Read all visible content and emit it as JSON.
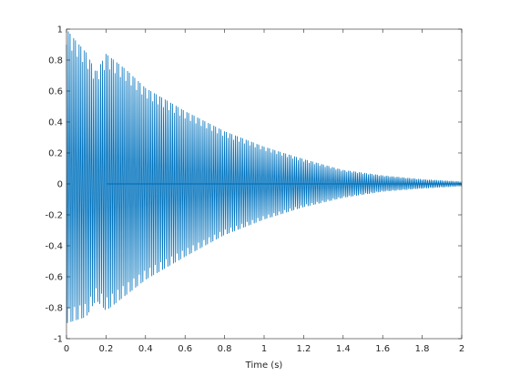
{
  "chart_data": {
    "type": "line",
    "title": "",
    "xlabel": "Time (s)",
    "ylabel": "",
    "xlim": [
      0,
      2
    ],
    "ylim": [
      -1,
      1
    ],
    "grid": false,
    "legend": "none",
    "x_ticks": [
      0,
      0.2,
      0.4,
      0.6,
      0.8,
      1,
      1.2,
      1.4,
      1.6,
      1.8,
      2
    ],
    "x_tick_labels": [
      "0",
      "0.2",
      "0.4",
      "0.6",
      "0.8",
      "1",
      "1.2",
      "1.4",
      "1.6",
      "1.8",
      "2"
    ],
    "y_ticks": [
      -1,
      -0.8,
      -0.6,
      -0.4,
      -0.2,
      0,
      0.2,
      0.4,
      0.6,
      0.8,
      1
    ],
    "y_tick_labels": [
      "-1",
      "-0.8",
      "-0.6",
      "-0.4",
      "-0.2",
      "0",
      "0.2",
      "0.4",
      "0.6",
      "0.8",
      "1"
    ],
    "series": [
      {
        "color": "#0072BD",
        "sample_rate_hz": 220,
        "envelope": {
          "time": [
            0,
            0.05,
            0.1,
            0.15,
            0.2,
            0.3,
            0.4,
            0.6,
            0.8,
            1.0,
            1.2,
            1.4,
            1.6,
            1.8,
            2.0
          ],
          "upper": [
            1.0,
            0.92,
            0.85,
            0.72,
            0.84,
            0.74,
            0.62,
            0.47,
            0.34,
            0.24,
            0.16,
            0.09,
            0.055,
            0.03,
            0.015
          ],
          "lower": [
            -0.9,
            -0.88,
            -0.86,
            -0.75,
            -0.82,
            -0.72,
            -0.62,
            -0.47,
            -0.33,
            -0.23,
            -0.15,
            -0.09,
            -0.05,
            -0.03,
            -0.015
          ]
        }
      }
    ]
  }
}
